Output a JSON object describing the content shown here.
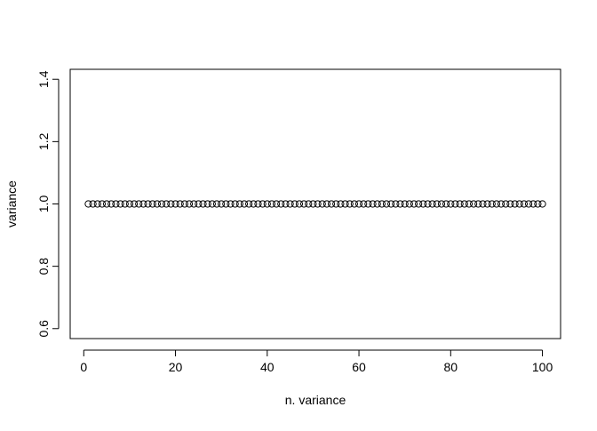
{
  "chart_data": {
    "type": "scatter",
    "title": "",
    "xlabel": "n. variance",
    "ylabel": "variance",
    "xlim": [
      -2.96,
      103.96
    ],
    "ylim": [
      0.568,
      1.432
    ],
    "xticks": [
      0,
      20,
      40,
      60,
      80,
      100
    ],
    "xtick_labels": [
      "0",
      "20",
      "40",
      "60",
      "80",
      "100"
    ],
    "yticks": [
      0.6,
      0.8,
      1.0,
      1.2,
      1.4
    ],
    "ytick_labels": [
      "0.6",
      "0.8",
      "1.0",
      "1.2",
      "1.4"
    ],
    "grid": false,
    "marker": "open-circle",
    "series": [
      {
        "x": [
          1,
          2,
          3,
          4,
          5,
          6,
          7,
          8,
          9,
          10,
          11,
          12,
          13,
          14,
          15,
          16,
          17,
          18,
          19,
          20,
          21,
          22,
          23,
          24,
          25,
          26,
          27,
          28,
          29,
          30,
          31,
          32,
          33,
          34,
          35,
          36,
          37,
          38,
          39,
          40,
          41,
          42,
          43,
          44,
          45,
          46,
          47,
          48,
          49,
          50,
          51,
          52,
          53,
          54,
          55,
          56,
          57,
          58,
          59,
          60,
          61,
          62,
          63,
          64,
          65,
          66,
          67,
          68,
          69,
          70,
          71,
          72,
          73,
          74,
          75,
          76,
          77,
          78,
          79,
          80,
          81,
          82,
          83,
          84,
          85,
          86,
          87,
          88,
          89,
          90,
          91,
          92,
          93,
          94,
          95,
          96,
          97,
          98,
          99,
          100
        ],
        "y": [
          1,
          1,
          1,
          1,
          1,
          1,
          1,
          1,
          1,
          1,
          1,
          1,
          1,
          1,
          1,
          1,
          1,
          1,
          1,
          1,
          1,
          1,
          1,
          1,
          1,
          1,
          1,
          1,
          1,
          1,
          1,
          1,
          1,
          1,
          1,
          1,
          1,
          1,
          1,
          1,
          1,
          1,
          1,
          1,
          1,
          1,
          1,
          1,
          1,
          1,
          1,
          1,
          1,
          1,
          1,
          1,
          1,
          1,
          1,
          1,
          1,
          1,
          1,
          1,
          1,
          1,
          1,
          1,
          1,
          1,
          1,
          1,
          1,
          1,
          1,
          1,
          1,
          1,
          1,
          1,
          1,
          1,
          1,
          1,
          1,
          1,
          1,
          1,
          1,
          1,
          1,
          1,
          1,
          1,
          1,
          1,
          1,
          1,
          1,
          1
        ]
      }
    ]
  }
}
